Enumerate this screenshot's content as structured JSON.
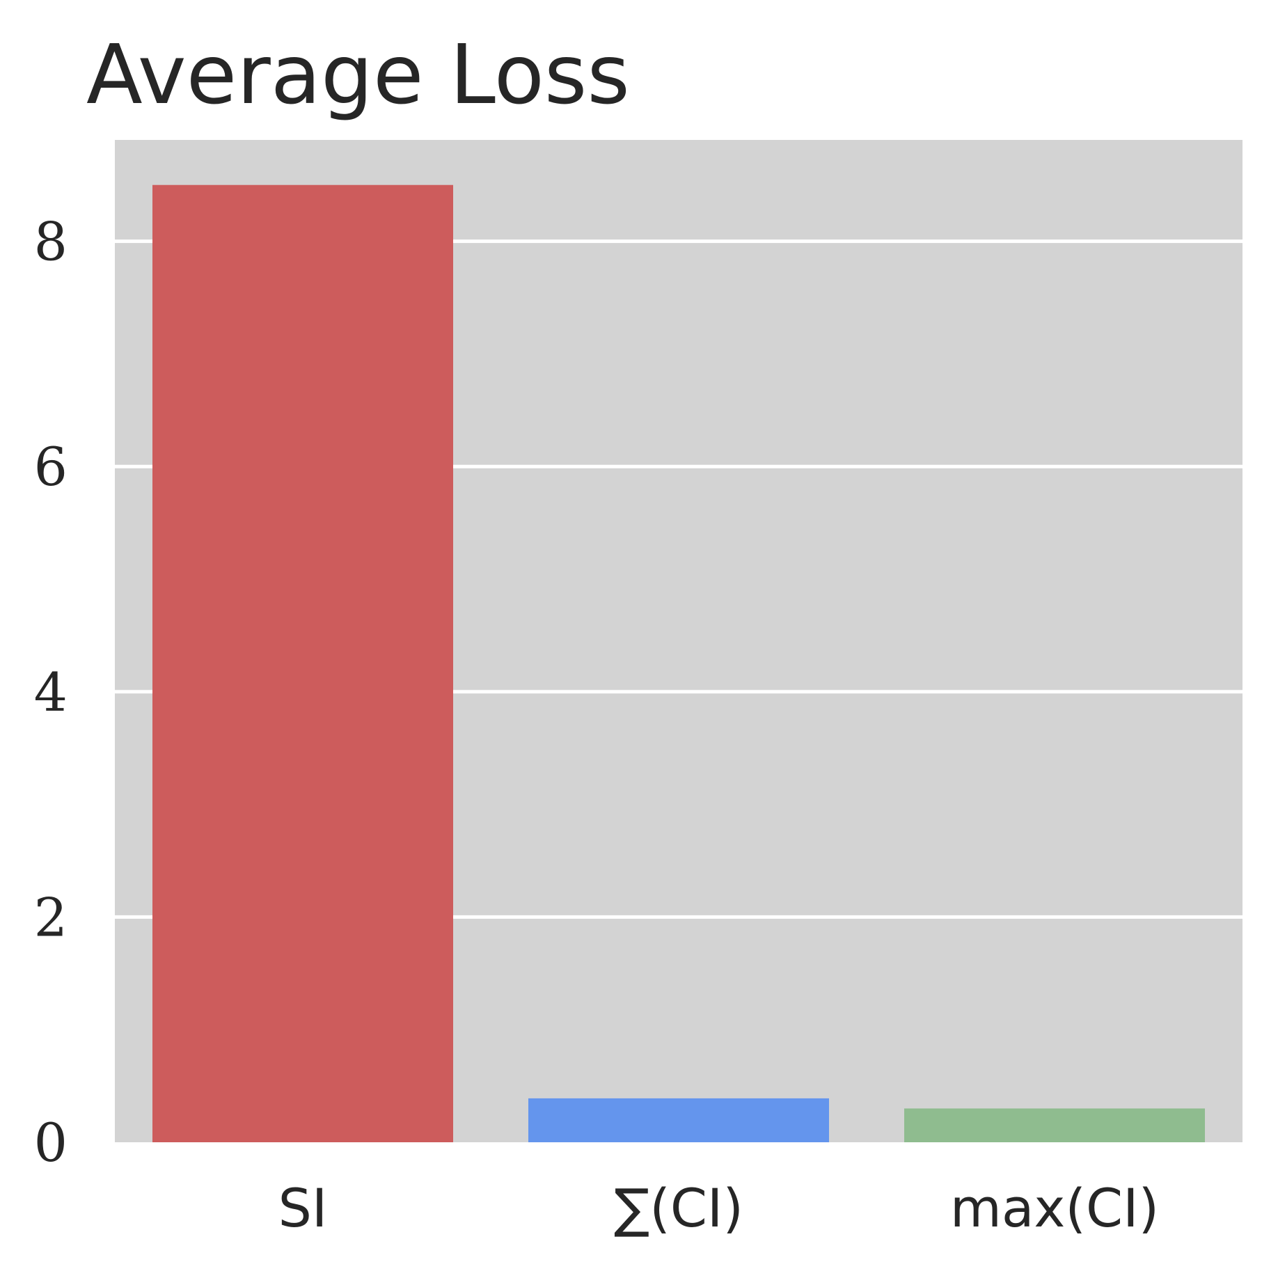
{
  "chart_data": {
    "type": "bar",
    "title": "Average Loss",
    "xlabel": "",
    "ylabel": "",
    "categories": [
      "SI",
      "∑(CI)",
      "max(CI)"
    ],
    "values": [
      8.5,
      0.39,
      0.3
    ],
    "ylim": [
      0,
      8.9
    ],
    "yticks": [
      0,
      2,
      4,
      6,
      8
    ],
    "ytick_labels": [
      "0",
      "2",
      "4",
      "6",
      "8"
    ],
    "grid": true,
    "legend": "none",
    "colors": {
      "bars": [
        "#cd5c5c",
        "#6495ed",
        "#8fbc8f"
      ],
      "plot_background": "#d3d3d3",
      "grid": "#ffffff",
      "text": "#262626"
    }
  }
}
